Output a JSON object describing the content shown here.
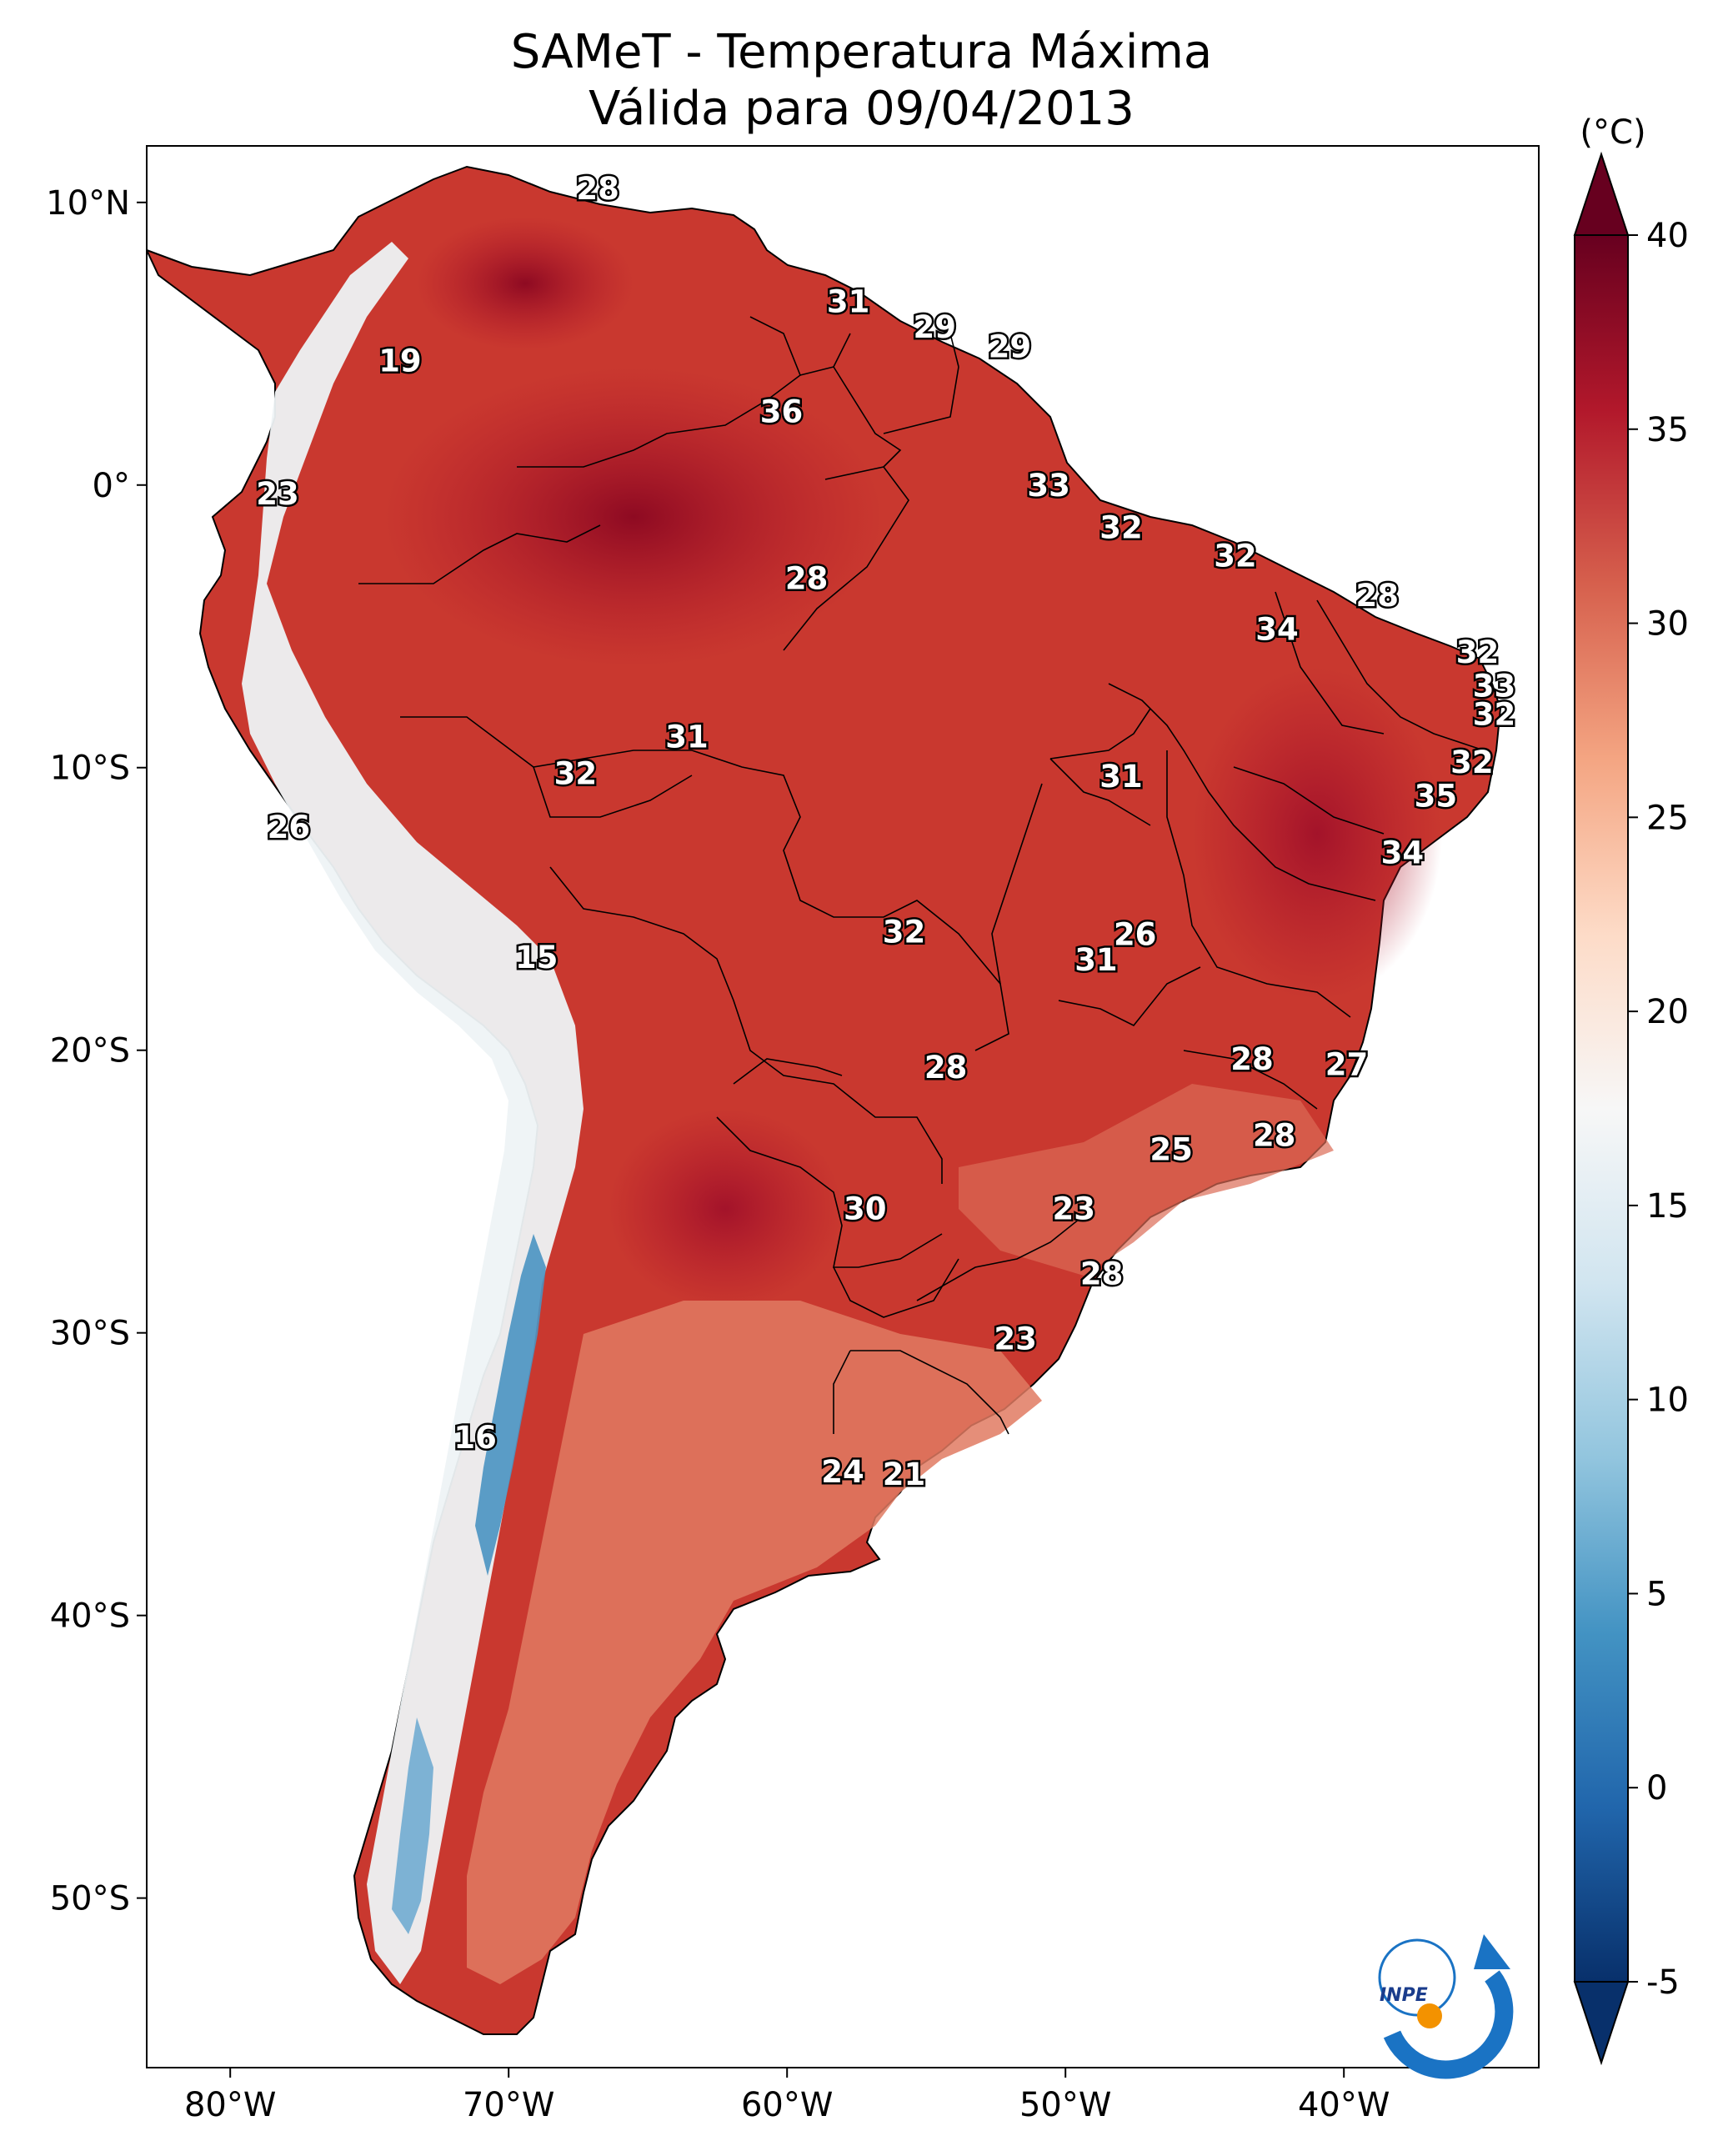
{
  "title": {
    "line1": "SAMeT - Temperatura Máxima",
    "line2": "Válida para 09/04/2013"
  },
  "axes": {
    "lat_ticks": [
      "10°N",
      "0°",
      "10°S",
      "20°S",
      "30°S",
      "40°S",
      "50°S"
    ],
    "lon_ticks": [
      "80°W",
      "70°W",
      "60°W",
      "50°W",
      "40°W"
    ],
    "lat_range": [
      -56,
      12
    ],
    "lon_range": [
      -83,
      -33
    ]
  },
  "colorbar": {
    "unit": "(°C)",
    "ticks": [
      "40",
      "35",
      "30",
      "25",
      "20",
      "15",
      "10",
      "5",
      "0",
      "-5"
    ],
    "range": [
      -5,
      40
    ],
    "colors": [
      "#08306b",
      "#2166ac",
      "#4393c3",
      "#92c5de",
      "#d1e5f0",
      "#f7f7f7",
      "#fddbc7",
      "#f4a582",
      "#d6604d",
      "#b2182b",
      "#67001f"
    ]
  },
  "labels": [
    {
      "text": "28",
      "lon": -66.8,
      "lat": 10.5
    },
    {
      "text": "31",
      "lon": -57.8,
      "lat": 6.5
    },
    {
      "text": "29",
      "lon": -54.7,
      "lat": 5.6
    },
    {
      "text": "29",
      "lon": -52.0,
      "lat": 4.9
    },
    {
      "text": "19",
      "lon": -73.9,
      "lat": 4.4
    },
    {
      "text": "36",
      "lon": -60.2,
      "lat": 2.6
    },
    {
      "text": "23",
      "lon": -78.3,
      "lat": -0.3
    },
    {
      "text": "33",
      "lon": -50.6,
      "lat": 0.0
    },
    {
      "text": "32",
      "lon": -48.0,
      "lat": -1.5
    },
    {
      "text": "32",
      "lon": -43.9,
      "lat": -2.5
    },
    {
      "text": "28",
      "lon": -59.3,
      "lat": -3.3
    },
    {
      "text": "28",
      "lon": -38.8,
      "lat": -3.9
    },
    {
      "text": "34",
      "lon": -42.4,
      "lat": -5.1
    },
    {
      "text": "32",
      "lon": -35.2,
      "lat": -5.9
    },
    {
      "text": "33",
      "lon": -34.6,
      "lat": -7.1
    },
    {
      "text": "32",
      "lon": -34.6,
      "lat": -8.1
    },
    {
      "text": "31",
      "lon": -63.6,
      "lat": -8.9
    },
    {
      "text": "32",
      "lon": -35.4,
      "lat": -9.8
    },
    {
      "text": "32",
      "lon": -67.6,
      "lat": -10.2
    },
    {
      "text": "31",
      "lon": -48.0,
      "lat": -10.3
    },
    {
      "text": "35",
      "lon": -36.7,
      "lat": -11.0
    },
    {
      "text": "26",
      "lon": -77.9,
      "lat": -12.1
    },
    {
      "text": "34",
      "lon": -37.9,
      "lat": -13.0
    },
    {
      "text": "26",
      "lon": -47.5,
      "lat": -15.9
    },
    {
      "text": "32",
      "lon": -55.8,
      "lat": -15.8
    },
    {
      "text": "15",
      "lon": -69.0,
      "lat": -16.7
    },
    {
      "text": "31",
      "lon": -48.9,
      "lat": -16.8
    },
    {
      "text": "28",
      "lon": -43.3,
      "lat": -20.3
    },
    {
      "text": "27",
      "lon": -39.9,
      "lat": -20.5
    },
    {
      "text": "28",
      "lon": -54.3,
      "lat": -20.6
    },
    {
      "text": "28",
      "lon": -42.5,
      "lat": -23.0
    },
    {
      "text": "25",
      "lon": -46.2,
      "lat": -23.5
    },
    {
      "text": "30",
      "lon": -57.2,
      "lat": -25.6
    },
    {
      "text": "23",
      "lon": -49.7,
      "lat": -25.6
    },
    {
      "text": "28",
      "lon": -48.7,
      "lat": -27.9
    },
    {
      "text": "23",
      "lon": -51.8,
      "lat": -30.2
    },
    {
      "text": "16",
      "lon": -71.2,
      "lat": -33.7
    },
    {
      "text": "24",
      "lon": -58.0,
      "lat": -34.9
    },
    {
      "text": "21",
      "lon": -55.8,
      "lat": -35.0
    }
  ],
  "logo": {
    "text": "INPE"
  }
}
